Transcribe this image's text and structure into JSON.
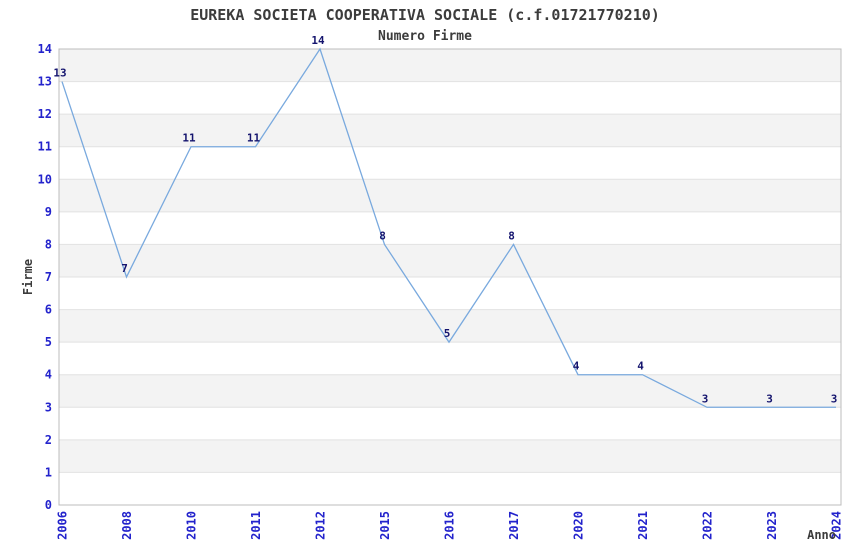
{
  "chart_data": {
    "type": "line",
    "title": "EUREKA SOCIETA COOPERATIVA SOCIALE (c.f.01721770210)",
    "subtitle": "Numero Firme",
    "xlabel": "Anno",
    "ylabel": "Firme",
    "categories": [
      "2006",
      "2008",
      "2010",
      "2011",
      "2012",
      "2015",
      "2016",
      "2017",
      "2020",
      "2021",
      "2022",
      "2023",
      "2024"
    ],
    "values": [
      13,
      7,
      11,
      11,
      14,
      8,
      5,
      8,
      4,
      4,
      3,
      3,
      3
    ],
    "ylim": [
      0,
      14
    ],
    "ytick_step": 1,
    "grid": true,
    "band_fill": "alternate-horizontal",
    "legend": "none",
    "point_labels_shown": true
  },
  "colors": {
    "line": "#79a9de",
    "band_gray": "#f3f3f3",
    "gridline": "#e2e2e2",
    "plot_border": "#bcbcbc",
    "tick_label": "#2323cc",
    "data_label": "#14146e",
    "heading_text": "#3c3c3c"
  }
}
